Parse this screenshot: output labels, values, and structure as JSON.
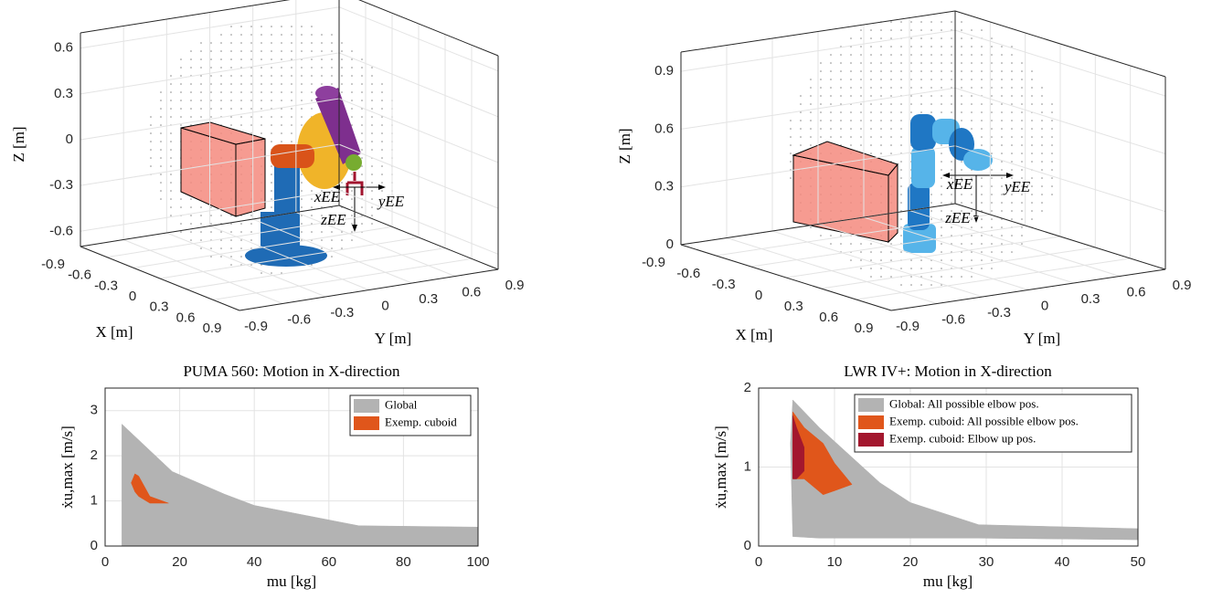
{
  "chart_data": [
    {
      "type": "3d",
      "xlabel": "X [m]",
      "ylabel": "Y [m]",
      "zlabel": "Z [m]",
      "xlim": [
        -0.9,
        0.9
      ],
      "xticks": [
        -0.9,
        -0.6,
        -0.3,
        0,
        0.3,
        0.6,
        0.9
      ],
      "ylim": [
        -0.9,
        0.9
      ],
      "yticks": [
        -0.9,
        -0.6,
        -0.3,
        0,
        0.3,
        0.6,
        0.9
      ],
      "zlim": [
        -0.7,
        0.7
      ],
      "zticks": [
        -0.6,
        -0.3,
        0,
        0.3,
        0.6
      ],
      "annotations": [
        "xEE",
        "yEE",
        "zEE"
      ]
    },
    {
      "type": "3d",
      "xlabel": "X [m]",
      "ylabel": "Y [m]",
      "zlabel": "Z [m]",
      "xlim": [
        -0.9,
        0.9
      ],
      "xticks": [
        -0.9,
        -0.6,
        -0.3,
        0,
        0.3,
        0.6,
        0.9
      ],
      "ylim": [
        -0.9,
        0.9
      ],
      "yticks": [
        -0.9,
        -0.6,
        -0.3,
        0,
        0.3,
        0.6,
        0.9
      ],
      "zlim": [
        0,
        1
      ],
      "zticks": [
        0,
        0.3,
        0.6,
        0.9
      ],
      "annotations": [
        "xEE",
        "yEE",
        "zEE"
      ]
    },
    {
      "type": "area",
      "title": "PUMA 560: Motion in X-direction",
      "xlabel": "mu [kg]",
      "ylabel": "ẋu,max [m/s]",
      "xlim": [
        0,
        100
      ],
      "xticks": [
        0,
        20,
        40,
        60,
        80,
        100
      ],
      "ylim": [
        0,
        3.5
      ],
      "yticks": [
        0,
        1,
        2,
        3
      ],
      "grid": true,
      "legend": "upper right",
      "series": [
        {
          "name": "Global",
          "color": "#b3b3b3",
          "x": [
            4.5,
            18,
            32,
            40,
            68,
            100
          ],
          "values": [
            2.7,
            1.65,
            1.15,
            0.9,
            0.45,
            0.42
          ],
          "lower": [
            0,
            0,
            0,
            0,
            0,
            0
          ]
        },
        {
          "name": "Exemp. cuboid",
          "color": "#e0561b",
          "x": [
            7,
            8,
            9,
            12,
            17
          ],
          "values": [
            1.4,
            1.6,
            1.55,
            1.1,
            0.95
          ],
          "lower": [
            1.4,
            1.2,
            1.1,
            0.95,
            0.95
          ]
        }
      ]
    },
    {
      "type": "area",
      "title": "LWR IV+: Motion in X-direction",
      "xlabel": "mu [kg]",
      "ylabel": "ẋu,max [m/s]",
      "xlim": [
        0,
        50
      ],
      "xticks": [
        0,
        10,
        20,
        30,
        40,
        50
      ],
      "ylim": [
        0,
        2
      ],
      "yticks": [
        0,
        1,
        2
      ],
      "grid": true,
      "legend": "upper right",
      "series": [
        {
          "name": "Global: All possible elbow pos.",
          "color": "#b3b3b3",
          "x": [
            4.2,
            4.5,
            8,
            16,
            20,
            29,
            50
          ],
          "values": [
            1.3,
            1.85,
            1.5,
            0.8,
            0.55,
            0.27,
            0.22
          ],
          "lower": [
            1.3,
            0.12,
            0.1,
            0.1,
            0.1,
            0.1,
            0.08
          ]
        },
        {
          "name": "Exemp. cuboid: All possible elbow pos.",
          "color": "#e0561b",
          "x": [
            4.5,
            6,
            8.5,
            10,
            12.3
          ],
          "values": [
            1.7,
            1.5,
            1.3,
            1.05,
            0.78
          ],
          "lower": [
            0.85,
            0.85,
            0.65,
            0.7,
            0.78
          ]
        },
        {
          "name": "Exemp. cuboid: Elbow up pos.",
          "color": "#a3172e",
          "x": [
            4.5,
            5,
            6
          ],
          "values": [
            1.65,
            1.5,
            1.25
          ],
          "lower": [
            0.85,
            0.85,
            0.95
          ]
        }
      ]
    }
  ]
}
